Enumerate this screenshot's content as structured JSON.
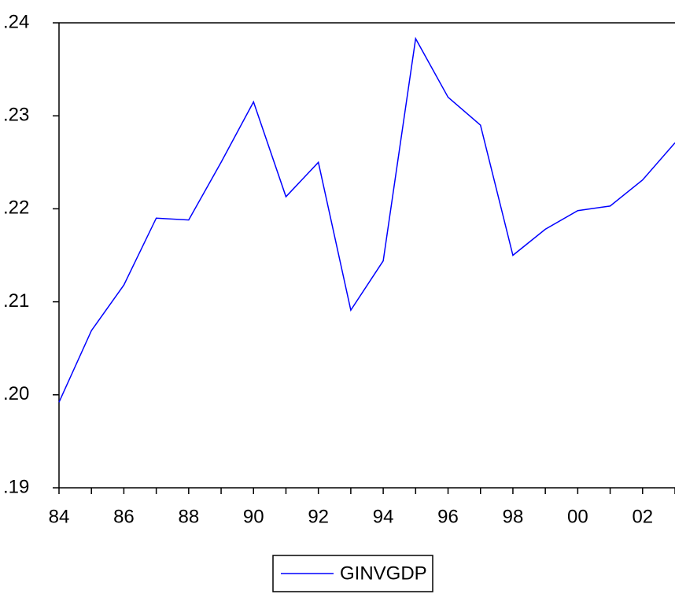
{
  "chart_data": {
    "type": "line",
    "categories": [
      "84",
      null,
      "86",
      null,
      "88",
      null,
      "90",
      null,
      "92",
      null,
      "94",
      null,
      "96",
      null,
      "98",
      null,
      "00",
      null,
      "02",
      null
    ],
    "series": [
      {
        "name": "GINVGDP",
        "color": "#0000ff",
        "values": [
          0.1992,
          0.2069,
          0.2118,
          0.219,
          0.2188,
          0.225,
          0.2315,
          0.2213,
          0.225,
          0.2091,
          0.2144,
          0.2383,
          0.232,
          0.229,
          0.215,
          0.2178,
          0.2198,
          0.2203,
          0.2231,
          0.2271
        ]
      }
    ],
    "ylim": [
      0.19,
      0.24
    ],
    "yticks": [
      {
        "value": 0.19,
        "label": ".19"
      },
      {
        "value": 0.2,
        "label": ".20"
      },
      {
        "value": 0.21,
        "label": ".21"
      },
      {
        "value": 0.22,
        "label": ".22"
      },
      {
        "value": 0.23,
        "label": ".23"
      },
      {
        "value": 0.24,
        "label": ".24"
      }
    ],
    "legend": "bottom"
  }
}
